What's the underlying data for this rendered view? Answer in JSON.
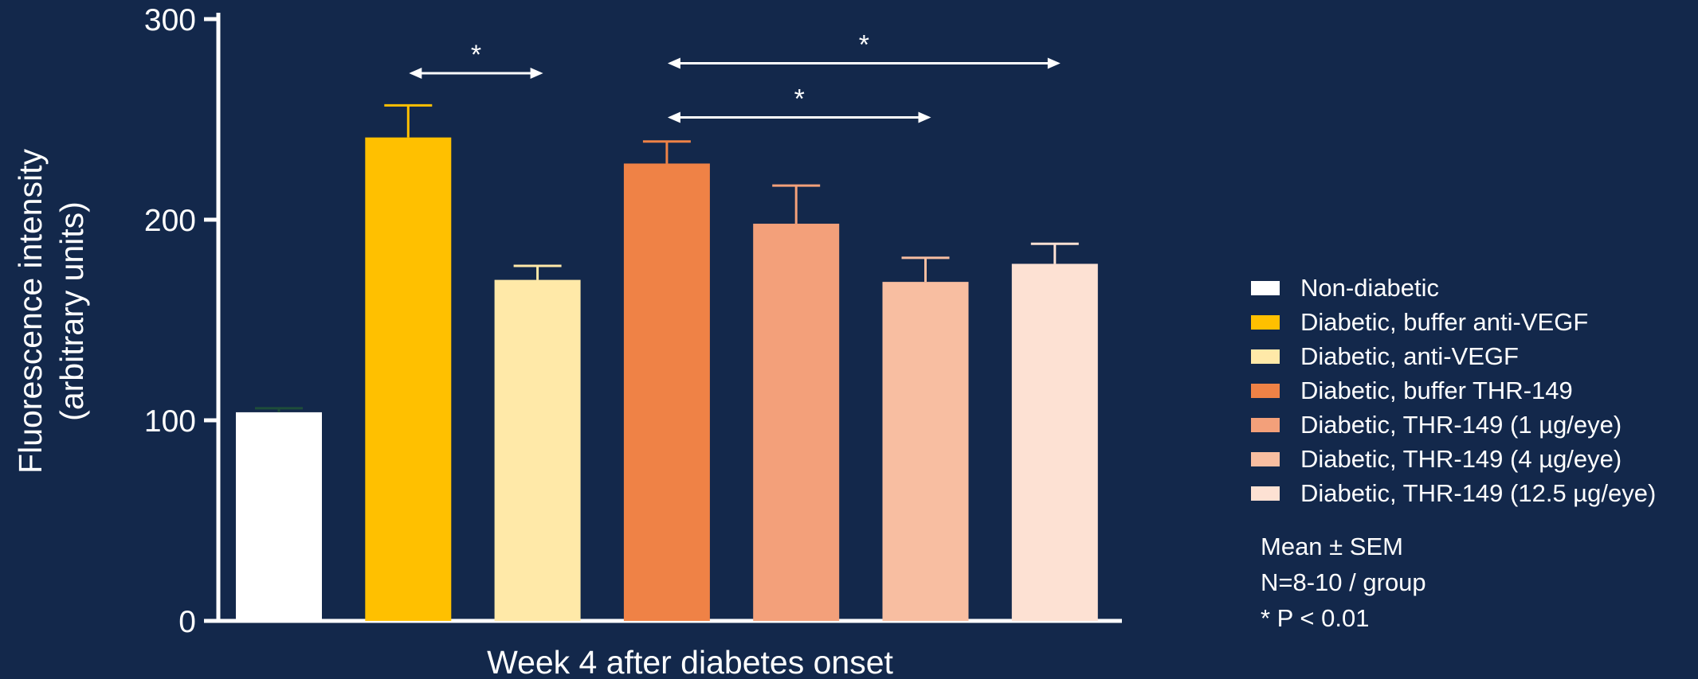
{
  "chart_data": {
    "type": "bar",
    "xlabel": "Week 4 after diabetes onset",
    "ylabel_lines": [
      "Fluorescence intensity",
      "(arbitrary units)"
    ],
    "ylim": [
      0,
      300
    ],
    "yticks": [
      0,
      100,
      200,
      300
    ],
    "series": [
      {
        "name": "Non-diabetic",
        "value": 104,
        "error": 2,
        "color": "#ffffff",
        "error_color": "#1e4d3a"
      },
      {
        "name": "Diabetic, buffer anti-VEGF",
        "value": 241,
        "error": 16,
        "color": "#ffc000",
        "error_color": "#ffc000"
      },
      {
        "name": "Diabetic, anti-VEGF",
        "value": 170,
        "error": 7,
        "color": "#ffe9a8",
        "error_color": "#ffe9a8"
      },
      {
        "name": "Diabetic, buffer THR-149",
        "value": 228,
        "error": 11,
        "color": "#ef8246",
        "error_color": "#ef8246"
      },
      {
        "name": "Diabetic, THR-149 (1 µg/eye)",
        "value": 198,
        "error": 19,
        "color": "#f3a07a",
        "error_color": "#f3a07a"
      },
      {
        "name": "Diabetic, THR-149 (4 µg/eye)",
        "value": 169,
        "error": 12,
        "color": "#f8bea1",
        "error_color": "#f8bea1"
      },
      {
        "name": "Diabetic, THR-149 (12.5 µg/eye)",
        "value": 178,
        "error": 10,
        "color": "#fde1d3",
        "error_color": "#fde1d3"
      }
    ],
    "significance": [
      {
        "from": 1,
        "to": 2,
        "y": 273,
        "label": "*"
      },
      {
        "from": 3,
        "to": 6,
        "y": 278,
        "label": "*"
      },
      {
        "from": 3,
        "to": 5,
        "y": 251,
        "label": "*"
      }
    ],
    "legend_position": "right"
  },
  "notes": [
    "Mean ± SEM",
    "N=8-10 / group",
    "* P < 0.01"
  ]
}
